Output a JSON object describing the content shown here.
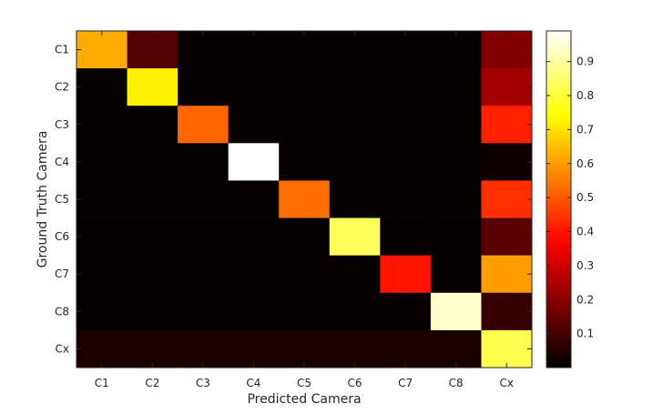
{
  "chart_data": {
    "type": "heatmap",
    "xlabel": "Predicted Camera",
    "ylabel": "Ground Truth Camera",
    "x_categories": [
      "C1",
      "C2",
      "C3",
      "C4",
      "C5",
      "C6",
      "C7",
      "C8",
      "Cx"
    ],
    "y_categories": [
      "C1",
      "C2",
      "C3",
      "C4",
      "C5",
      "C6",
      "C7",
      "C8",
      "Cx"
    ],
    "values": [
      [
        0.62,
        0.12,
        0.01,
        0.01,
        0.01,
        0.01,
        0.01,
        0.01,
        0.19
      ],
      [
        0.01,
        0.72,
        0.01,
        0.01,
        0.01,
        0.01,
        0.01,
        0.01,
        0.24
      ],
      [
        0.01,
        0.01,
        0.52,
        0.01,
        0.01,
        0.01,
        0.01,
        0.01,
        0.42
      ],
      [
        0.01,
        0.01,
        0.01,
        0.99,
        0.01,
        0.01,
        0.01,
        0.01,
        0.02
      ],
      [
        0.01,
        0.01,
        0.01,
        0.01,
        0.53,
        0.01,
        0.01,
        0.01,
        0.44
      ],
      [
        0.01,
        0.01,
        0.01,
        0.01,
        0.01,
        0.83,
        0.01,
        0.01,
        0.13
      ],
      [
        0.01,
        0.01,
        0.01,
        0.01,
        0.01,
        0.01,
        0.4,
        0.01,
        0.6
      ],
      [
        0.01,
        0.01,
        0.01,
        0.01,
        0.01,
        0.01,
        0.01,
        0.94,
        0.08
      ],
      [
        0.04,
        0.04,
        0.04,
        0.04,
        0.04,
        0.04,
        0.04,
        0.04,
        0.82
      ]
    ],
    "colormap": "hot",
    "colorbar": {
      "min": 0.0,
      "max": 0.99,
      "ticks": [
        0.1,
        0.2,
        0.3,
        0.4,
        0.5,
        0.6,
        0.7,
        0.8,
        0.9
      ],
      "tick_labels": [
        "0.1",
        "0.2",
        "0.3",
        "0.4",
        "0.5",
        "0.6",
        "0.7",
        "0.8",
        "0.9"
      ]
    }
  }
}
